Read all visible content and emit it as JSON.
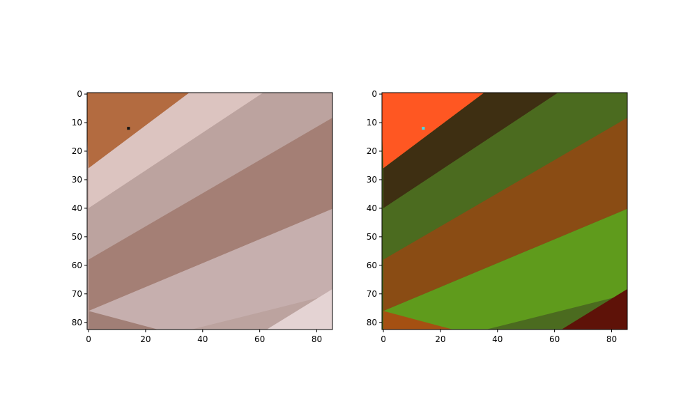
{
  "chart_data": [
    {
      "type": "heatmap",
      "title": "",
      "xlabel": "",
      "ylabel": "",
      "xlim": [
        -0.5,
        85.5
      ],
      "ylim": [
        82.5,
        -0.5
      ],
      "x_ticks": [
        "0",
        "20",
        "40",
        "60",
        "80"
      ],
      "y_ticks": [
        "0",
        "10",
        "20",
        "30",
        "40",
        "50",
        "60",
        "70",
        "80"
      ],
      "image_size": [
        86,
        83
      ],
      "marked_pixel": [
        14,
        12
      ],
      "colors": {
        "top_left_region": "#b36b40",
        "bright_band": "#dcc4c0",
        "middle_band": "#bca39f",
        "dark_band": "#a47f75",
        "lower_band": "#c6afae",
        "bottom_left": "#a17f76",
        "bottom_right_highlight": "#e4d3d3",
        "marked_pixel": "#111111"
      }
    },
    {
      "type": "heatmap",
      "title": "",
      "xlabel": "",
      "ylabel": "",
      "xlim": [
        -0.5,
        85.5
      ],
      "ylim": [
        82.5,
        -0.5
      ],
      "x_ticks": [
        "0",
        "20",
        "40",
        "60",
        "80"
      ],
      "y_ticks": [
        "0",
        "10",
        "20",
        "30",
        "40",
        "50",
        "60",
        "70",
        "80"
      ],
      "image_size": [
        86,
        83
      ],
      "marked_pixel": [
        14,
        12
      ],
      "colors": {
        "top_left_region": "#ff5722",
        "bright_band": "#3e2f12",
        "middle_band": "#4b6b1f",
        "dark_band": "#8a4c14",
        "lower_band": "#5f9b1c",
        "bottom_left": "#a55012",
        "bottom_right_highlight": "#5e1208",
        "marked_pixel": "#40e0f0"
      }
    }
  ]
}
